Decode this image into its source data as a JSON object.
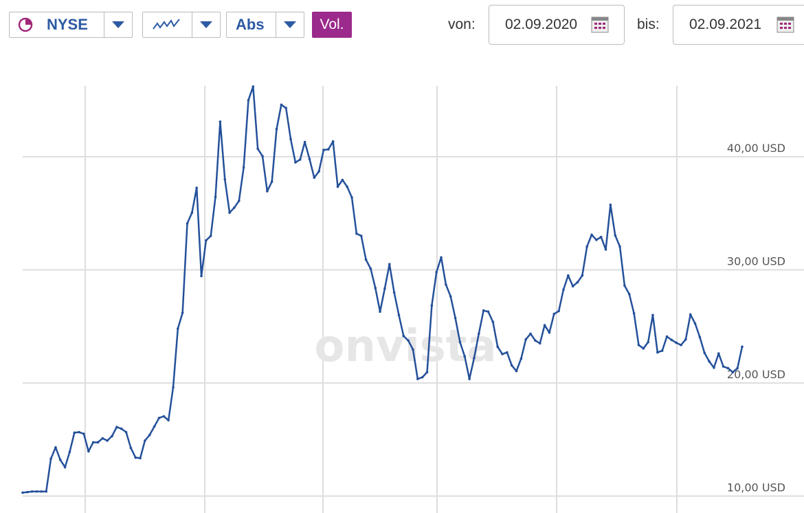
{
  "toolbar": {
    "exchange": "NYSE",
    "mode": "Abs",
    "volume": "Vol.",
    "from_label": "von:",
    "from_date": "02.09.2020",
    "to_label": "bis:",
    "to_date": "02.09.2021"
  },
  "watermark": "onvista",
  "chart_data": {
    "type": "line",
    "color": "#24509a",
    "grid": true,
    "ylim": [
      8.5,
      46.5
    ],
    "yticks": [
      {
        "value": 10,
        "label": "10,00 USD"
      },
      {
        "value": 20,
        "label": "20,00 USD"
      },
      {
        "value": 30,
        "label": "30,00 USD"
      },
      {
        "value": 40,
        "label": "40,00 USD"
      }
    ],
    "values": [
      10.3,
      10.35,
      10.4,
      10.4,
      10.4,
      10.4,
      13.3,
      14.3,
      13.2,
      12.55,
      13.9,
      15.6,
      15.65,
      15.5,
      13.95,
      14.75,
      14.75,
      15.1,
      14.9,
      15.3,
      16.1,
      15.95,
      15.65,
      14.25,
      13.4,
      13.35,
      14.9,
      15.4,
      16.15,
      16.9,
      17.05,
      16.7,
      19.6,
      24.8,
      26.2,
      34.1,
      35.05,
      37.25,
      29.45,
      32.6,
      33,
      36.45,
      43.1,
      38,
      35.05,
      35.5,
      36.1,
      39.05,
      45,
      46.2,
      40.7,
      40.05,
      36.95,
      37.8,
      42.45,
      44.6,
      44.3,
      41.55,
      39.5,
      39.75,
      41.3,
      39.8,
      38.15,
      38.7,
      40.6,
      40.65,
      41.35,
      37.35,
      37.95,
      37.35,
      36.4,
      33.2,
      33,
      30.9,
      30.1,
      28.4,
      26.3,
      28.35,
      30.5,
      28,
      26,
      24.15,
      23.75,
      22.95,
      20.35,
      20.5,
      20.95,
      26.85,
      29.8,
      31.1,
      28.7,
      27.65,
      25.75,
      23.6,
      22.35,
      20.35,
      22.2,
      24.35,
      26.4,
      26.3,
      25.4,
      23.2,
      22.55,
      22.7,
      21.55,
      21.05,
      22.15,
      23.85,
      24.35,
      23.75,
      23.5,
      25.1,
      24.45,
      26.1,
      26.35,
      28.25,
      29.5,
      28.55,
      28.9,
      29.5,
      32.05,
      33.1,
      32.65,
      32.9,
      31.8,
      35.75,
      33.05,
      32.05,
      28.6,
      27.85,
      26.15,
      23.35,
      23.05,
      23.6,
      26,
      22.7,
      22.85,
      24.1,
      23.8,
      23.55,
      23.35,
      23.85,
      26.05,
      25.25,
      24.05,
      22.65,
      21.9,
      21.35,
      22.6,
      21.45,
      21.3,
      20.95,
      21.3,
      23.2
    ]
  }
}
